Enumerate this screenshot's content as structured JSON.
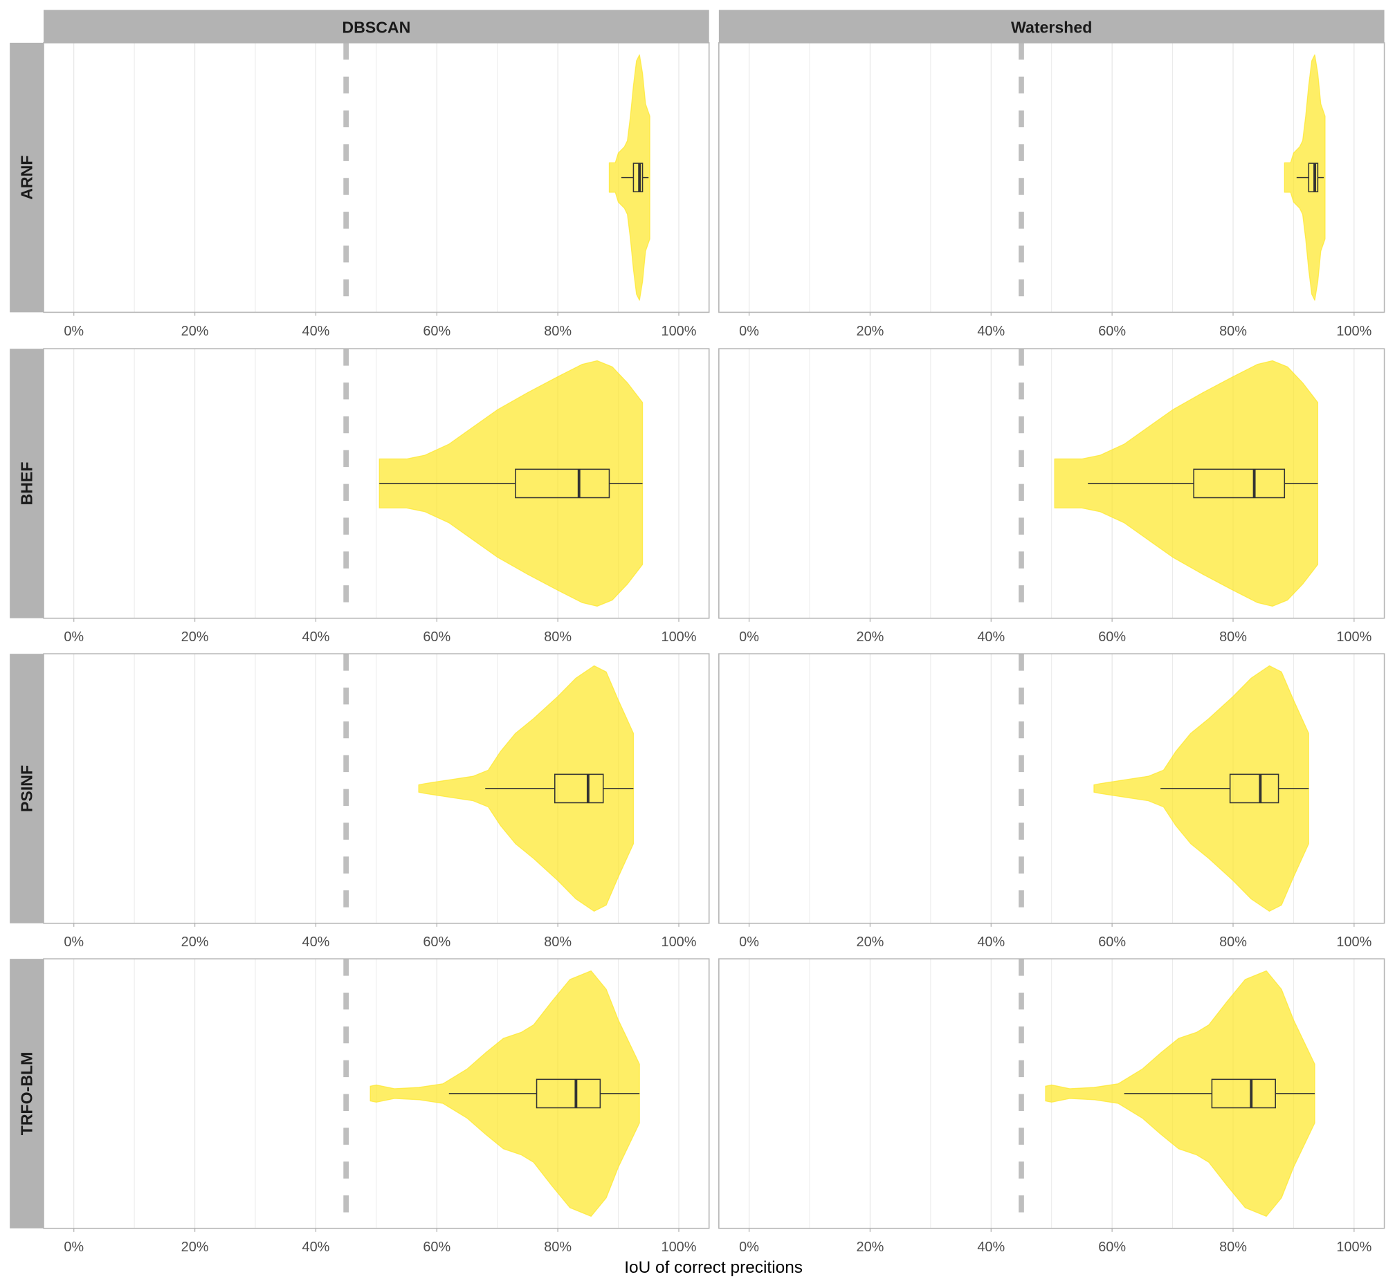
{
  "chart_data": {
    "type": "violin",
    "xlabel": "IoU of correct precitions",
    "ylabel": "",
    "xlim": [
      -5,
      105
    ],
    "x_ticks": [
      "0%",
      "20%",
      "40%",
      "60%",
      "80%",
      "100%"
    ],
    "x_tick_values": [
      0,
      20,
      40,
      60,
      80,
      100
    ],
    "grid": true,
    "reference_line": {
      "x": 45,
      "style": "dashed",
      "color": "#BEBEBE"
    },
    "fill_color": "#FDE725",
    "columns": [
      "DBSCAN",
      "Watershed"
    ],
    "rows": [
      "ARNF",
      "BHEF",
      "PSINF",
      "TRFO-BLM"
    ],
    "panels": [
      {
        "row": "ARNF",
        "column": "DBSCAN",
        "box": {
          "whisker_low": 90.5,
          "q1": 92.5,
          "median": 93.5,
          "q3": 94.0,
          "whisker_high": 95.0
        },
        "density": [
          [
            88.5,
            0.12
          ],
          [
            89.5,
            0.12
          ],
          [
            90,
            0.2
          ],
          [
            91,
            0.25
          ],
          [
            91.5,
            0.3
          ],
          [
            92,
            0.5
          ],
          [
            92.5,
            0.75
          ],
          [
            93,
            0.95
          ],
          [
            93.5,
            1.0
          ],
          [
            94,
            0.85
          ],
          [
            94.5,
            0.6
          ],
          [
            95.2,
            0.5
          ]
        ]
      },
      {
        "row": "ARNF",
        "column": "Watershed",
        "box": {
          "whisker_low": 90.5,
          "q1": 92.5,
          "median": 93.5,
          "q3": 94.0,
          "whisker_high": 95.0
        },
        "density": [
          [
            88.5,
            0.12
          ],
          [
            89.5,
            0.12
          ],
          [
            90,
            0.2
          ],
          [
            91,
            0.25
          ],
          [
            91.5,
            0.3
          ],
          [
            92,
            0.5
          ],
          [
            92.5,
            0.75
          ],
          [
            93,
            0.95
          ],
          [
            93.5,
            1.0
          ],
          [
            94,
            0.85
          ],
          [
            94.5,
            0.6
          ],
          [
            95.2,
            0.5
          ]
        ]
      },
      {
        "row": "BHEF",
        "column": "DBSCAN",
        "box": {
          "whisker_low": 50.5,
          "q1": 73.0,
          "median": 83.5,
          "q3": 88.5,
          "whisker_high": 94.0
        },
        "density": [
          [
            50.5,
            0.2
          ],
          [
            52,
            0.2
          ],
          [
            55,
            0.2
          ],
          [
            58,
            0.23
          ],
          [
            62,
            0.32
          ],
          [
            66,
            0.46
          ],
          [
            70,
            0.6
          ],
          [
            75,
            0.74
          ],
          [
            80,
            0.87
          ],
          [
            84,
            0.97
          ],
          [
            86.5,
            1.0
          ],
          [
            89,
            0.95
          ],
          [
            91.5,
            0.82
          ],
          [
            94,
            0.66
          ]
        ]
      },
      {
        "row": "BHEF",
        "column": "Watershed",
        "box": {
          "whisker_low": 56.0,
          "q1": 73.5,
          "median": 83.5,
          "q3": 88.5,
          "whisker_high": 94.0
        },
        "density": [
          [
            50.5,
            0.2
          ],
          [
            52,
            0.2
          ],
          [
            55,
            0.2
          ],
          [
            58,
            0.23
          ],
          [
            62,
            0.32
          ],
          [
            66,
            0.46
          ],
          [
            70,
            0.6
          ],
          [
            75,
            0.74
          ],
          [
            80,
            0.87
          ],
          [
            84,
            0.97
          ],
          [
            86.5,
            1.0
          ],
          [
            89,
            0.95
          ],
          [
            91.5,
            0.82
          ],
          [
            94,
            0.66
          ]
        ]
      },
      {
        "row": "PSINF",
        "column": "DBSCAN",
        "box": {
          "whisker_low": 68.0,
          "q1": 79.5,
          "median": 85.0,
          "q3": 87.5,
          "whisker_high": 92.5
        },
        "density": [
          [
            57,
            0.03
          ],
          [
            58,
            0.04
          ],
          [
            62,
            0.07
          ],
          [
            66,
            0.1
          ],
          [
            68.5,
            0.15
          ],
          [
            70.5,
            0.3
          ],
          [
            73,
            0.45
          ],
          [
            76,
            0.57
          ],
          [
            80,
            0.75
          ],
          [
            83,
            0.9
          ],
          [
            86,
            1.0
          ],
          [
            88,
            0.95
          ],
          [
            90,
            0.72
          ],
          [
            92.5,
            0.45
          ]
        ]
      },
      {
        "row": "PSINF",
        "column": "Watershed",
        "box": {
          "whisker_low": 68.0,
          "q1": 79.5,
          "median": 84.5,
          "q3": 87.5,
          "whisker_high": 92.5
        },
        "density": [
          [
            57,
            0.03
          ],
          [
            58,
            0.04
          ],
          [
            62,
            0.07
          ],
          [
            66,
            0.1
          ],
          [
            68.5,
            0.15
          ],
          [
            70.5,
            0.3
          ],
          [
            73,
            0.45
          ],
          [
            76,
            0.57
          ],
          [
            80,
            0.75
          ],
          [
            83,
            0.9
          ],
          [
            86,
            1.0
          ],
          [
            88,
            0.95
          ],
          [
            90,
            0.72
          ],
          [
            92.5,
            0.45
          ]
        ]
      },
      {
        "row": "TRFO-BLM",
        "column": "DBSCAN",
        "box": {
          "whisker_low": 62.0,
          "q1": 76.5,
          "median": 83.0,
          "q3": 87.0,
          "whisker_high": 93.5
        },
        "density": [
          [
            49,
            0.06
          ],
          [
            50,
            0.07
          ],
          [
            53,
            0.04
          ],
          [
            57,
            0.05
          ],
          [
            61,
            0.08
          ],
          [
            65,
            0.2
          ],
          [
            68,
            0.33
          ],
          [
            71,
            0.45
          ],
          [
            74,
            0.5
          ],
          [
            76,
            0.56
          ],
          [
            79,
            0.75
          ],
          [
            82,
            0.93
          ],
          [
            85.5,
            1.0
          ],
          [
            88,
            0.85
          ],
          [
            90,
            0.6
          ],
          [
            93.5,
            0.24
          ]
        ]
      },
      {
        "row": "TRFO-BLM",
        "column": "Watershed",
        "box": {
          "whisker_low": 62.0,
          "q1": 76.5,
          "median": 83.0,
          "q3": 87.0,
          "whisker_high": 93.5
        },
        "density": [
          [
            49,
            0.06
          ],
          [
            50,
            0.07
          ],
          [
            53,
            0.04
          ],
          [
            57,
            0.05
          ],
          [
            61,
            0.08
          ],
          [
            65,
            0.2
          ],
          [
            68,
            0.33
          ],
          [
            71,
            0.45
          ],
          [
            74,
            0.5
          ],
          [
            76,
            0.56
          ],
          [
            79,
            0.75
          ],
          [
            82,
            0.93
          ],
          [
            85.5,
            1.0
          ],
          [
            88,
            0.85
          ],
          [
            90,
            0.6
          ],
          [
            93.5,
            0.24
          ]
        ]
      }
    ]
  }
}
